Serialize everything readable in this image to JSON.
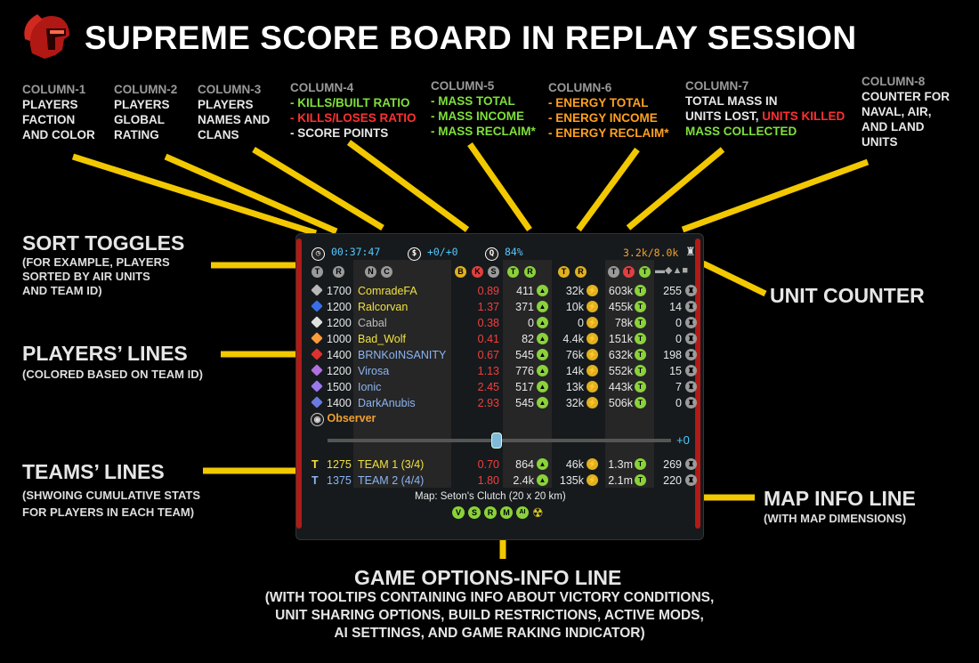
{
  "title": "SUPREME SCORE BOARD IN REPLAY SESSION",
  "columns": [
    {
      "head": "COLUMN-1",
      "lines": [
        {
          "t": "PLAYERS",
          "c": "w"
        },
        {
          "t": "FACTION",
          "c": "w"
        },
        {
          "t": "AND COLOR",
          "c": "w"
        }
      ]
    },
    {
      "head": "COLUMN-2",
      "lines": [
        {
          "t": "PLAYERS",
          "c": "w"
        },
        {
          "t": "GLOBAL",
          "c": "w"
        },
        {
          "t": "RATING",
          "c": "w"
        }
      ]
    },
    {
      "head": "COLUMN-3",
      "lines": [
        {
          "t": "PLAYERS",
          "c": "w"
        },
        {
          "t": "NAMES AND",
          "c": "w"
        },
        {
          "t": "CLANS",
          "c": "w"
        }
      ]
    },
    {
      "head": "COLUMN-4",
      "lines": [
        {
          "t": "- KILLS/BUILT RATIO",
          "c": "g"
        },
        {
          "t": "- KILLS/LOSES RATIO",
          "c": "r"
        },
        {
          "t": "- SCORE POINTS",
          "c": "w"
        }
      ]
    },
    {
      "head": "COLUMN-5",
      "lines": [
        {
          "t": "- MASS TOTAL",
          "c": "g"
        },
        {
          "t": "- MASS INCOME",
          "c": "g"
        },
        {
          "t": "- MASS RECLAIM*",
          "c": "g"
        }
      ]
    },
    {
      "head": "COLUMN-6",
      "lines": [
        {
          "t": "- ENERGY TOTAL",
          "c": "o"
        },
        {
          "t": "- ENERGY INCOME",
          "c": "o"
        },
        {
          "t": "- ENERGY RECLAIM*",
          "c": "o"
        }
      ]
    },
    {
      "head": "COLUMN-7",
      "lines": [
        {
          "t": "TOTAL MASS IN",
          "c": "w"
        },
        {
          "t": "UNITS LOST, ",
          "c": "w",
          "t2": "UNITS KILLED",
          "c2": "r"
        },
        {
          "t": "MASS COLLECTED",
          "c": "g"
        }
      ]
    },
    {
      "head": "COLUMN-8",
      "lines": [
        {
          "t": "COUNTER FOR",
          "c": "w"
        },
        {
          "t": "NAVAL, AIR,",
          "c": "w"
        },
        {
          "t": "AND LAND",
          "c": "w"
        },
        {
          "t": "UNITS",
          "c": "w"
        }
      ]
    }
  ],
  "callouts": {
    "sort": {
      "title": "SORT TOGGLES",
      "sub": [
        "(FOR EXAMPLE, PLAYERS",
        "SORTED BY AIR UNITS",
        "AND TEAM ID)"
      ]
    },
    "players": {
      "title": "PLAYERS’ LINES",
      "sub": [
        "(COLORED BASED ON TEAM ID)"
      ]
    },
    "teams": {
      "title": "TEAMS’ LINES",
      "sub": [
        "(SHWOING CUMULATIVE STATS",
        "FOR PLAYERS IN EACH TEAM)"
      ]
    },
    "unit_counter": {
      "title": "UNIT COUNTER"
    },
    "map_info": {
      "title": "MAP INFO LINE",
      "sub": [
        "(WITH MAP DIMENSIONS)"
      ]
    },
    "game_options": {
      "title": "GAME OPTIONS-INFO LINE",
      "sub": [
        "(WITH TOOLTIPS CONTAINING INFO ABOUT VICTORY CONDITIONS,",
        "UNIT SHARING OPTIONS, BUILD RESTRICTIONS, ACTIVE MODS,",
        "AI SETTINGS, AND GAME RAKING INDICATOR)"
      ]
    }
  },
  "board": {
    "time": "00:37:47",
    "score_delta": "+0/+0",
    "quality": "84%",
    "units_total": "3.2k/8.0k",
    "header_toggles": [
      "T",
      "R",
      "N",
      "C",
      "B",
      "K",
      "S",
      "T",
      "R",
      "T",
      "R",
      "T",
      "T",
      "T"
    ],
    "players": [
      {
        "rating": "1700",
        "name": "ComradeFA",
        "ratio": "0.89",
        "mass": "411",
        "energy": "32k",
        "col7": "603k",
        "units": "255",
        "color": "#f0e040",
        "faction": "#b8b8b8"
      },
      {
        "rating": "1200",
        "name": "Ralcorvan",
        "ratio": "1.37",
        "mass": "371",
        "energy": "10k",
        "col7": "455k",
        "units": "14",
        "color": "#f0e040",
        "faction": "#3a6ee8"
      },
      {
        "rating": "1200",
        "name": "Cabal",
        "ratio": "0.38",
        "mass": "0",
        "energy": "0",
        "col7": "78k",
        "units": "0",
        "color": "#bcbcbc",
        "faction": "#e0e0e0"
      },
      {
        "rating": "1000",
        "name": "Bad_Wolf",
        "ratio": "0.41",
        "mass": "82",
        "energy": "4.4k",
        "col7": "151k",
        "units": "0",
        "color": "#f0e040",
        "faction": "#ff9a3a"
      },
      {
        "rating": "1400",
        "name": "BRNKoINSANITY",
        "ratio": "0.67",
        "mass": "545",
        "energy": "76k",
        "col7": "632k",
        "units": "198",
        "color": "#8cb4f0",
        "faction": "#e03030"
      },
      {
        "rating": "1200",
        "name": "Virosa",
        "ratio": "1.13",
        "mass": "776",
        "energy": "14k",
        "col7": "552k",
        "units": "15",
        "color": "#8cb4f0",
        "faction": "#b070e0"
      },
      {
        "rating": "1500",
        "name": "Ionic",
        "ratio": "2.45",
        "mass": "517",
        "energy": "13k",
        "col7": "443k",
        "units": "7",
        "color": "#8cb4f0",
        "faction": "#9a78f0"
      },
      {
        "rating": "1400",
        "name": "DarkAnubis",
        "ratio": "2.93",
        "mass": "545",
        "energy": "32k",
        "col7": "506k",
        "units": "0",
        "color": "#8cb4f0",
        "faction": "#6a7ae0"
      }
    ],
    "observer": "Observer",
    "slider_value": "+0",
    "teams": [
      {
        "rating": "1275",
        "name": "TEAM 1 (3/4)",
        "ratio": "0.70",
        "mass": "864",
        "energy": "46k",
        "col7": "1.3m",
        "units": "269",
        "color": "#f0e040"
      },
      {
        "rating": "1375",
        "name": "TEAM 2 (4/4)",
        "ratio": "1.80",
        "mass": "2.4k",
        "energy": "135k",
        "col7": "2.1m",
        "units": "220",
        "color": "#8cb4f0"
      }
    ],
    "map_info": "Map: Seton's Clutch  (20 x 20 km)",
    "game_options": [
      "V",
      "S",
      "R",
      "M",
      "AI"
    ]
  }
}
